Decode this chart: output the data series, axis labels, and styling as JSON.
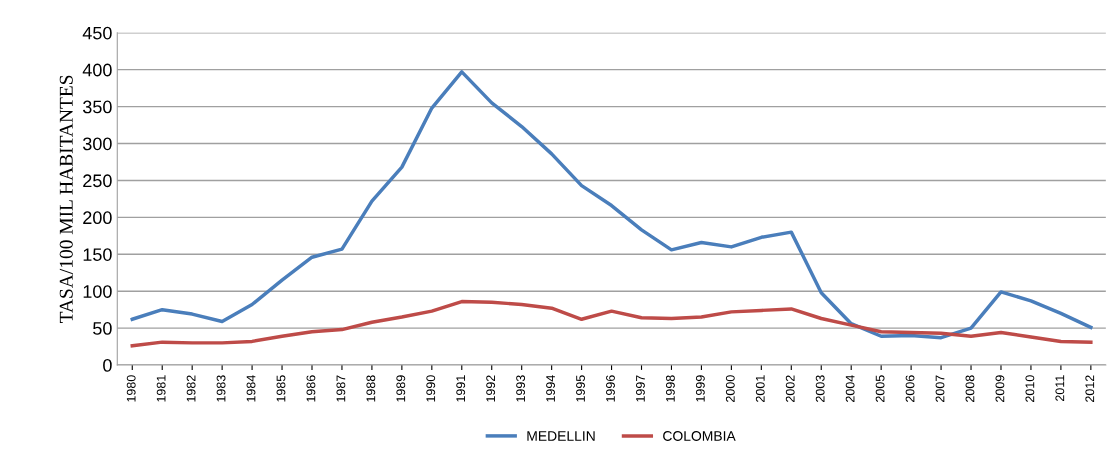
{
  "chart_data": {
    "type": "line",
    "ylabel": "TASA/100 MIL HABITANTES",
    "categories": [
      "1980",
      "1981",
      "1982",
      "1983",
      "1984",
      "1985",
      "1986",
      "1987",
      "1988",
      "1989",
      "1990",
      "1991",
      "1992",
      "1993",
      "1994",
      "1995",
      "1996",
      "1997",
      "1998",
      "1999",
      "2000",
      "2001",
      "2002",
      "2003",
      "2004",
      "2005",
      "2006",
      "2007",
      "2008",
      "2009",
      "2010",
      "2011",
      "2012"
    ],
    "series": [
      {
        "name": "MEDELLIN",
        "color": "#4a7ebb",
        "values": [
          62,
          75,
          69,
          59,
          82,
          115,
          146,
          157,
          222,
          268,
          348,
          397,
          355,
          323,
          286,
          243,
          216,
          183,
          156,
          166,
          160,
          173,
          180,
          98,
          56,
          39,
          40,
          37,
          50,
          99,
          87,
          70,
          51
        ]
      },
      {
        "name": "COLOMBIA",
        "color": "#be4b48",
        "values": [
          26,
          31,
          30,
          30,
          32,
          39,
          45,
          48,
          58,
          65,
          73,
          86,
          85,
          82,
          77,
          62,
          73,
          64,
          63,
          65,
          72,
          74,
          76,
          63,
          54,
          45,
          44,
          43,
          39,
          44,
          38,
          32,
          31
        ]
      }
    ],
    "ylim": [
      0,
      450
    ],
    "yticks": [
      0,
      50,
      100,
      150,
      200,
      250,
      300,
      350,
      400,
      450
    ],
    "grid": "y",
    "legend": "bottom",
    "marker": "none",
    "line_style": "solid"
  }
}
